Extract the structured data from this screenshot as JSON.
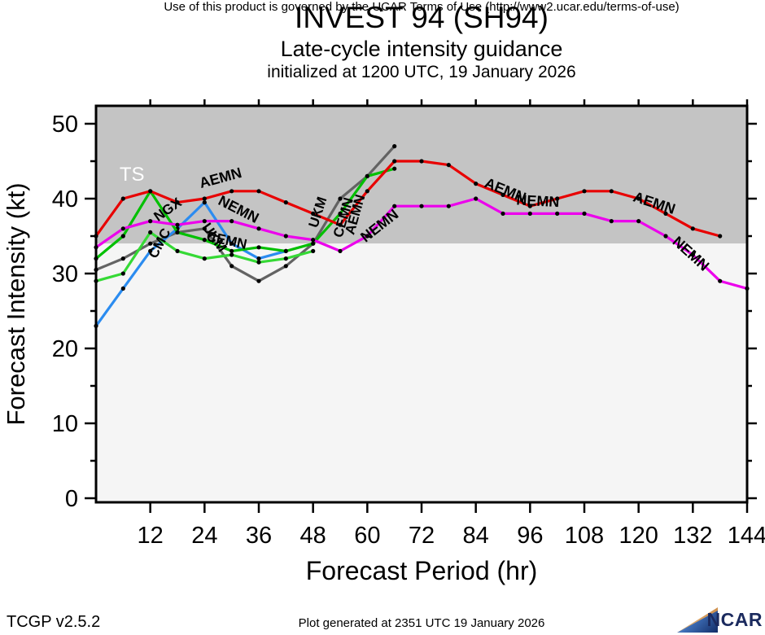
{
  "header": {
    "title": "INVEST 94 (SH94)",
    "subtitle": "Late-cycle intensity guidance",
    "init_line": "initialized at 1200 UTC, 19 January 2026"
  },
  "footer": {
    "terms": "Use of this product is governed by the UCAR Terms of Use (http://www2.ucar.edu/terms-of-use)",
    "version": "TCGP v2.5.2",
    "generated": "Plot generated at 2351 UTC   19 January 2026",
    "logo_text": "NCAR"
  },
  "colors": {
    "ts_region": "#c4c4c4",
    "below_ts_region": "#f5f5f5",
    "axis": "#000000",
    "dot": "#000000"
  },
  "chart_data": {
    "type": "line",
    "title": "INVEST 94 (SH94)",
    "subtitle": "Late-cycle intensity guidance",
    "init_line": "initialized at 1200 UTC, 19 January 2026",
    "xlabel": "Forecast Period (hr)",
    "ylabel": "Forecast Intensity (kt)",
    "xlim": [
      0,
      144
    ],
    "ylim": [
      0,
      52.4
    ],
    "xticks": [
      12,
      24,
      36,
      48,
      60,
      72,
      84,
      96,
      108,
      120,
      132,
      144
    ],
    "yticks": [
      0,
      10,
      20,
      30,
      40,
      50
    ],
    "yticks_minor": [
      5,
      15,
      25,
      35,
      45
    ],
    "grid": false,
    "ts_threshold_kt": 34,
    "ts_region_label": "TS",
    "series": [
      {
        "name": "UKM",
        "color": "#636363",
        "x": [
          0,
          6,
          12,
          18,
          24,
          30,
          36,
          42,
          48,
          54,
          60,
          66
        ],
        "values": [
          30.5,
          32,
          34,
          35.5,
          36,
          31,
          29,
          31,
          34,
          40,
          43,
          47
        ]
      },
      {
        "name": "CMC",
        "color": "#2b8cf0",
        "x": [
          0,
          6,
          12,
          18,
          24,
          30,
          36,
          42
        ],
        "values": [
          23,
          28,
          33,
          36,
          39.5,
          34,
          32,
          33
        ]
      },
      {
        "name": "NGX",
        "color": "#35d935",
        "x": [
          0,
          6,
          12,
          18,
          24,
          30,
          36,
          42,
          48
        ],
        "values": [
          29,
          30,
          35.5,
          33,
          32,
          32.5,
          31.5,
          32,
          33
        ]
      },
      {
        "name": "CEMN",
        "color": "#00c000",
        "x": [
          0,
          6,
          12,
          18,
          24,
          30,
          36,
          42,
          48,
          54,
          60,
          66
        ],
        "values": [
          32,
          35,
          41,
          35.5,
          34.5,
          33,
          33.5,
          33,
          34,
          38,
          43,
          44
        ]
      },
      {
        "name": "NEMN",
        "color": "#ec00ec",
        "x": [
          0,
          6,
          12,
          18,
          24,
          30,
          36,
          42,
          48,
          54,
          60,
          66,
          72,
          78,
          84,
          90,
          96,
          102,
          108,
          114,
          120,
          126,
          132,
          138,
          144
        ],
        "values": [
          33.5,
          36,
          37,
          36.5,
          37,
          37,
          36,
          35,
          34.5,
          33,
          35,
          39,
          39,
          39,
          40,
          38,
          38,
          38,
          38,
          37,
          37,
          35,
          32.5,
          29,
          28
        ]
      },
      {
        "name": "AEMN",
        "color": "#e80000",
        "x": [
          0,
          6,
          12,
          18,
          24,
          30,
          36,
          42,
          48,
          54,
          60,
          66,
          72,
          78,
          84,
          90,
          96,
          102,
          108,
          114,
          120,
          126,
          132,
          138
        ],
        "values": [
          35,
          40,
          41,
          39.5,
          40,
          41,
          41,
          39.5,
          38,
          36.5,
          41,
          45,
          45,
          44.5,
          42,
          40.5,
          39,
          40,
          41,
          41,
          40,
          38,
          36,
          35
        ]
      }
    ],
    "line_labels": [
      {
        "text": "TS",
        "hr": 5.2,
        "kt": 42.4,
        "rot": 0,
        "color": "#ffffff",
        "size": 24,
        "bold": false
      },
      {
        "text": "AEMN",
        "hr": 23.2,
        "kt": 41.4,
        "rot": -15,
        "color": "#000000",
        "size": 18,
        "bold": true
      },
      {
        "text": "NEMN",
        "hr": 26.8,
        "kt": 39.3,
        "rot": 27,
        "color": "#000000",
        "size": 18,
        "bold": true
      },
      {
        "text": "NGX",
        "hr": 13.7,
        "kt": 36.9,
        "rot": -35,
        "color": "#000000",
        "size": 17,
        "bold": true
      },
      {
        "text": "CMC",
        "hr": 13.3,
        "kt": 31.9,
        "rot": -62,
        "color": "#000000",
        "size": 17,
        "bold": true
      },
      {
        "text": "UKM",
        "hr": 23.4,
        "kt": 36.2,
        "rot": 55,
        "color": "#000000",
        "size": 17,
        "bold": true
      },
      {
        "text": "CEMN",
        "hr": 24.3,
        "kt": 34.4,
        "rot": 12,
        "color": "#000000",
        "size": 17,
        "bold": true
      },
      {
        "text": "UKM",
        "hr": 48.9,
        "kt": 36.0,
        "rot": -72,
        "color": "#000000",
        "size": 17,
        "bold": true
      },
      {
        "text": "CEMN",
        "hr": 54.4,
        "kt": 34.7,
        "rot": -74,
        "color": "#000000",
        "size": 17,
        "bold": true
      },
      {
        "text": "AEMN",
        "hr": 57.0,
        "kt": 35.1,
        "rot": -74,
        "color": "#000000",
        "size": 17,
        "bold": true
      },
      {
        "text": "NEMN",
        "hr": 59.6,
        "kt": 34.1,
        "rot": -38,
        "color": "#000000",
        "size": 18,
        "bold": true
      },
      {
        "text": "AEMN",
        "hr": 85.7,
        "kt": 41.6,
        "rot": 22,
        "color": "#000000",
        "size": 18,
        "bold": true
      },
      {
        "text": "NEMN",
        "hr": 92.9,
        "kt": 39.2,
        "rot": 3,
        "color": "#000000",
        "size": 18,
        "bold": true
      },
      {
        "text": "AEMN",
        "hr": 118.6,
        "kt": 39.7,
        "rot": 18,
        "color": "#000000",
        "size": 18,
        "bold": true
      },
      {
        "text": "NEMN",
        "hr": 127.3,
        "kt": 34.1,
        "rot": 42,
        "color": "#000000",
        "size": 18,
        "bold": true
      }
    ]
  }
}
